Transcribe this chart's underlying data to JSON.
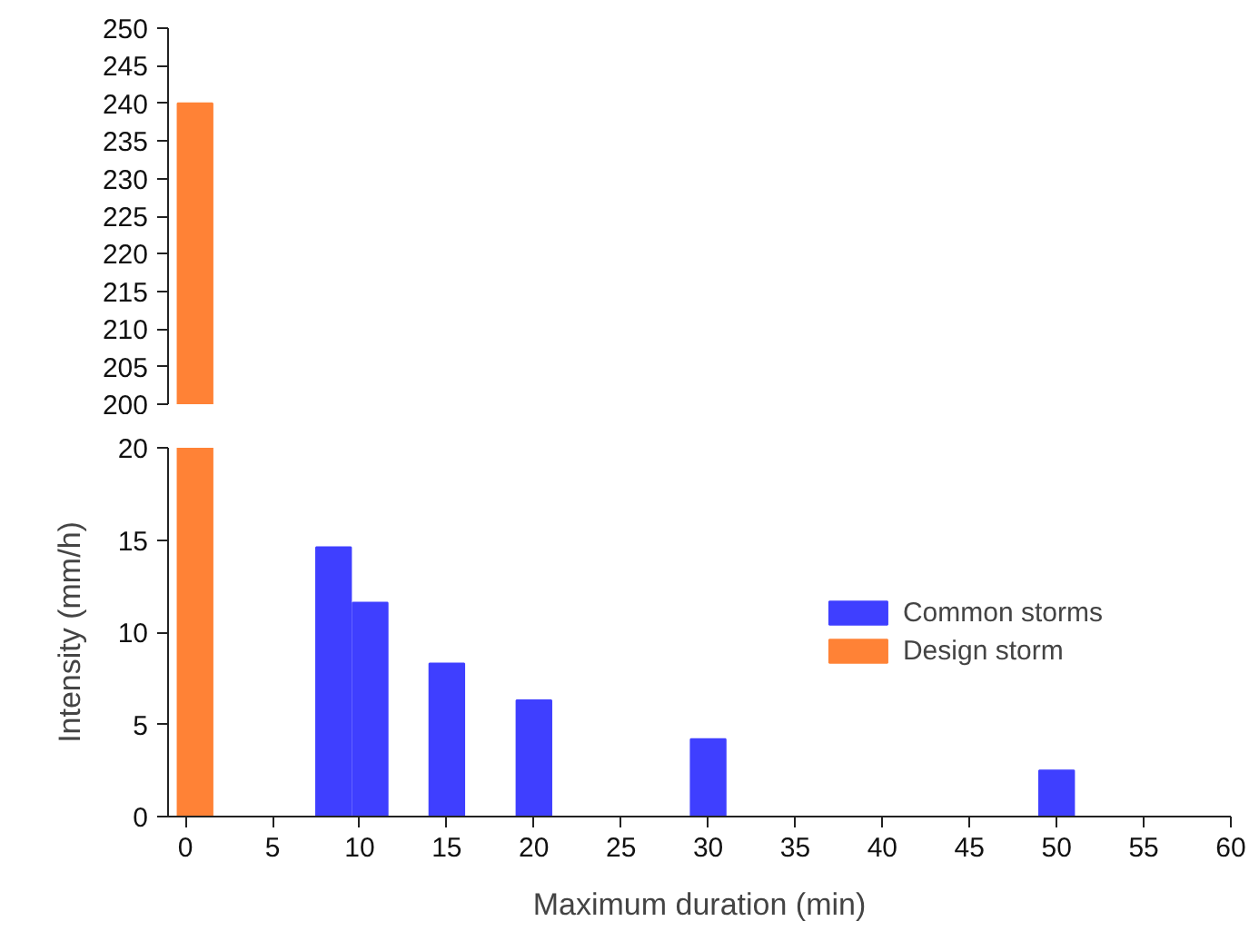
{
  "chart_data": [
    {
      "type": "bar",
      "xlim": [
        -1,
        60
      ],
      "ylim": [
        200,
        250
      ],
      "yticks": [
        200,
        205,
        210,
        215,
        220,
        225,
        230,
        235,
        240,
        245,
        250
      ],
      "tick_labels": "y",
      "series": [
        {
          "color": "#ff8236",
          "x": [
            0.55
          ],
          "base": [
            200
          ],
          "values": [
            40
          ]
        }
      ]
    },
    {
      "type": "bar",
      "xlim": [
        -1,
        60
      ],
      "xticks": [
        0,
        5,
        10,
        15,
        20,
        25,
        30,
        35,
        40,
        45,
        50,
        55,
        60
      ],
      "ylim": [
        0,
        20
      ],
      "yticks": [
        0,
        5,
        10,
        15,
        20
      ],
      "xlabel": "Maximum duration (min)",
      "ylabel": "Intensity (mm/h)",
      "legend": "right",
      "series": [
        {
          "name": "Common storms",
          "color": "#3f3fff",
          "x": [
            8.5,
            10.6,
            15,
            20,
            30,
            50
          ],
          "values": [
            14.6,
            11.6,
            8.3,
            6.3,
            4.2,
            2.5
          ]
        },
        {
          "name": "Design storm",
          "color": "#ff8236",
          "x": [
            0.55
          ],
          "values": [
            20
          ]
        }
      ]
    }
  ]
}
